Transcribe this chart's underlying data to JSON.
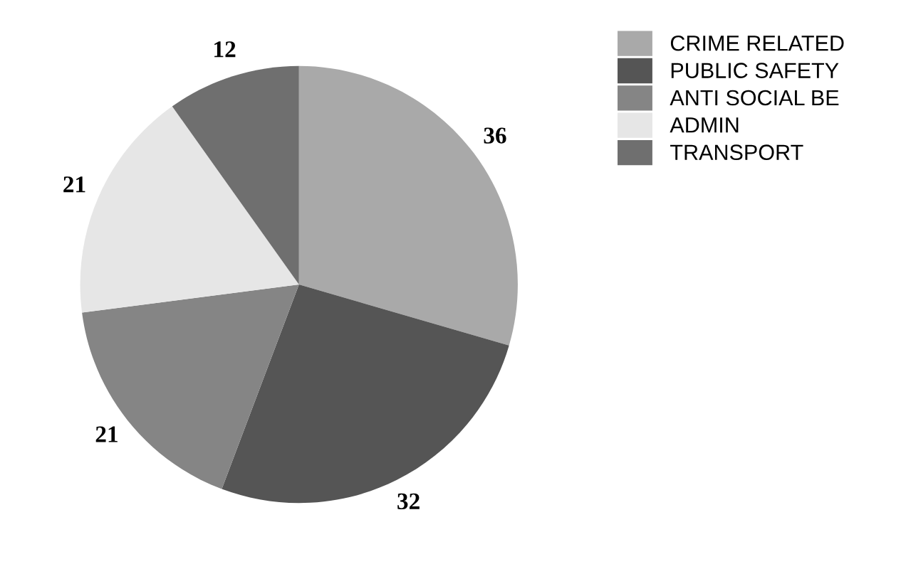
{
  "chart_data": {
    "type": "pie",
    "categories": [
      "CRIME RELATED",
      "PUBLIC SAFETY",
      "ANTI SOCIAL BE",
      "ADMIN",
      "TRANSPORT"
    ],
    "values": [
      36,
      32,
      21,
      21,
      12
    ],
    "colors": [
      "#a9a9a9",
      "#555555",
      "#858585",
      "#e6e6e6",
      "#6f6f6f"
    ],
    "data_labels": true,
    "legend": "top right"
  }
}
